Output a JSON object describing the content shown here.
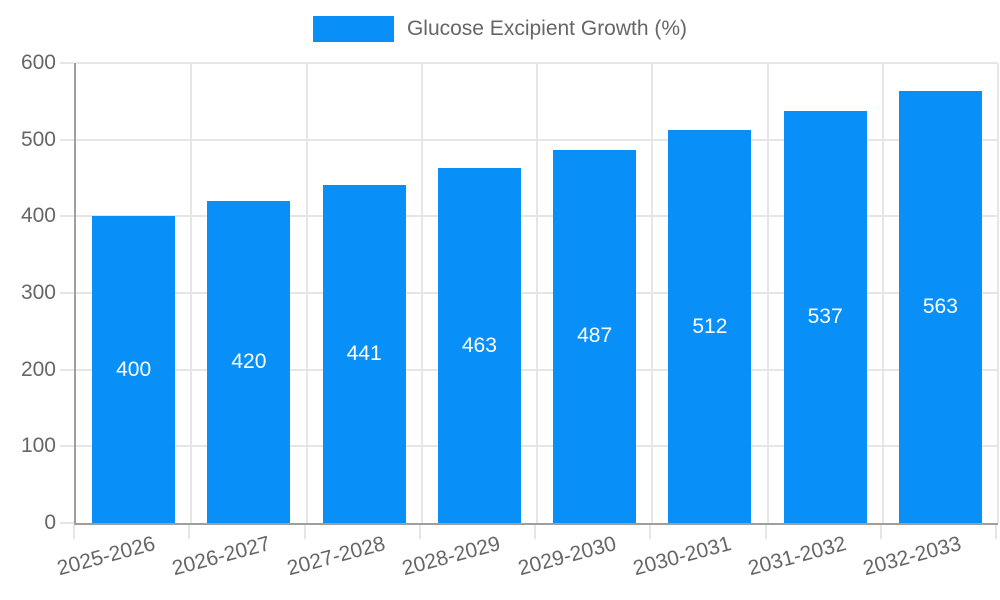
{
  "legend": {
    "label": "Glucose Excipient Growth (%)"
  },
  "chart_data": {
    "type": "bar",
    "title": "Glucose Excipient Growth (%)",
    "categories": [
      "2025-2026",
      "2026-2027",
      "2027-2028",
      "2028-2029",
      "2029-2030",
      "2030-2031",
      "2031-2032",
      "2032-2033"
    ],
    "values": [
      400,
      420,
      441,
      463,
      487,
      512,
      537,
      563
    ],
    "value_labels": [
      "400",
      "420",
      "441",
      "463",
      "487",
      "512",
      "537",
      "563"
    ],
    "xlabel": "",
    "ylabel": "",
    "ylim": [
      0,
      600
    ],
    "yticks": [
      0,
      100,
      200,
      300,
      400,
      500,
      600
    ],
    "grid": true,
    "legend_position": "top"
  },
  "colors": {
    "bar": "#0890f8",
    "grid": "#e6e6e6",
    "axis": "#9e9e9e",
    "tick_text": "#666666",
    "value_text": "#ffffff",
    "background": "#ffffff"
  }
}
